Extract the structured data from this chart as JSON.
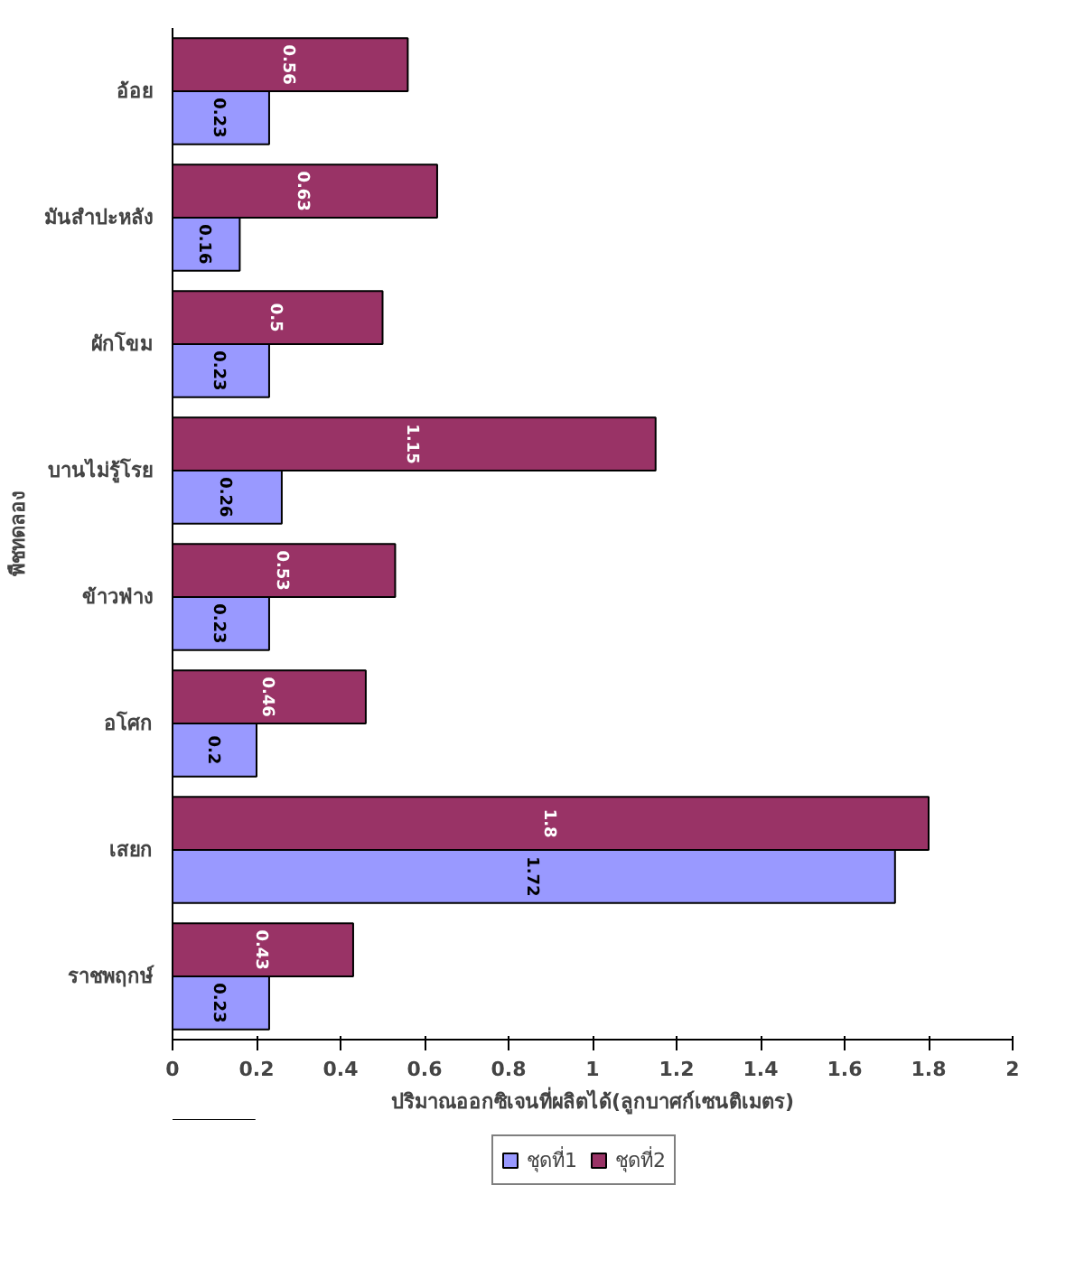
{
  "chart_data": {
    "type": "bar",
    "orientation": "horizontal",
    "xlabel": "ปริมาณออกซิเจนที่ผลิตได้(ลูกบาศก์เซนติเมตร)",
    "ylabel": "พืชทดลอง",
    "categories": [
      "อ้อย",
      "มันสำปะหลัง",
      "ผักโขม",
      "บานไม่รู้โรย",
      "ข้าวฟ่าง",
      "อโศก",
      "เสยก",
      "ราชพฤกษ์"
    ],
    "series": [
      {
        "name": "ชุดที่1",
        "color": "#9999ff",
        "values": [
          0.23,
          0.16,
          0.23,
          0.26,
          0.23,
          0.2,
          1.72,
          0.23
        ]
      },
      {
        "name": "ชุดที่2",
        "color": "#993366",
        "values": [
          0.56,
          0.63,
          0.5,
          1.15,
          0.53,
          0.46,
          1.8,
          0.43
        ]
      }
    ],
    "xlim": [
      0,
      2
    ],
    "xticks": [
      0,
      0.2,
      0.4,
      0.6,
      0.8,
      1,
      1.2,
      1.4,
      1.6,
      1.8,
      2
    ],
    "data_labels": true,
    "grid": false,
    "legend": "bottom"
  }
}
